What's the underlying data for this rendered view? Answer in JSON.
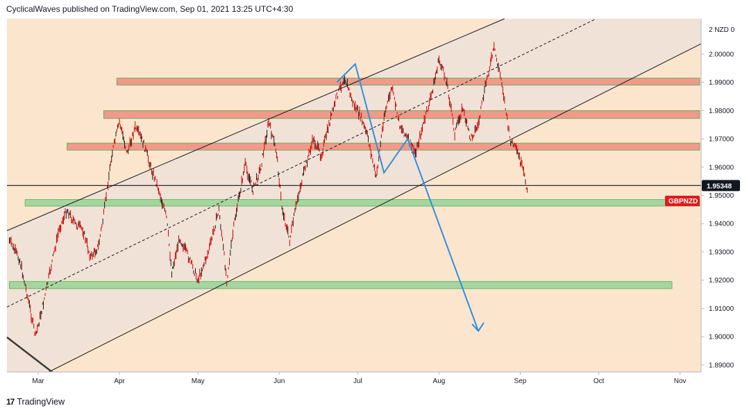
{
  "header": {
    "text": "CyclicalWaves published on TradingView.com, Sep 01, 2021 13:25 UTC+4:30"
  },
  "footer": {
    "logo": "17",
    "brand": "TradingView"
  },
  "colors": {
    "background": "#fbe5cd",
    "channel_fill": "#efe2d6",
    "resistance_zone": "#ef9a8a",
    "support_zone": "#a5d6a0",
    "zone_border": "#4caf50",
    "candle": "#cc0000",
    "projection": "#2f8fe0",
    "symbol_tag": "#e31919",
    "price_tag": "#131722"
  },
  "chart_data": {
    "type": "line",
    "symbol": "GBPNZD",
    "currency_label": "2 NZD 0",
    "last_price": "1.95348",
    "ylim": [
      1.8875,
      2.0125
    ],
    "y_ticks": [
      "2.00000",
      "1.99000",
      "1.98000",
      "1.97000",
      "1.96000",
      "1.95000",
      "1.94000",
      "1.93000",
      "1.92000",
      "1.91000",
      "1.90000",
      "1.89000"
    ],
    "x_ticks": [
      "Mar",
      "Apr",
      "May",
      "Jun",
      "Jul",
      "Aug",
      "Sep",
      "Oct",
      "Nov"
    ],
    "series": [
      {
        "values": [
          [
            "2021-02-18",
            1.934
          ],
          [
            "2021-02-22",
            1.927
          ],
          [
            "2021-02-25",
            1.914
          ],
          [
            "2021-02-28",
            1.9
          ],
          [
            "2021-03-03",
            1.912
          ],
          [
            "2021-03-06",
            1.925
          ],
          [
            "2021-03-09",
            1.938
          ],
          [
            "2021-03-12",
            1.945
          ],
          [
            "2021-03-15",
            1.94
          ],
          [
            "2021-03-18",
            1.938
          ],
          [
            "2021-03-21",
            1.928
          ],
          [
            "2021-03-24",
            1.932
          ],
          [
            "2021-03-26",
            1.943
          ],
          [
            "2021-03-29",
            1.964
          ],
          [
            "2021-04-01",
            1.976
          ],
          [
            "2021-04-04",
            1.965
          ],
          [
            "2021-04-07",
            1.974
          ],
          [
            "2021-04-10",
            1.969
          ],
          [
            "2021-04-13",
            1.96
          ],
          [
            "2021-04-16",
            1.952
          ],
          [
            "2021-04-19",
            1.942
          ],
          [
            "2021-04-21",
            1.923
          ],
          [
            "2021-04-24",
            1.935
          ],
          [
            "2021-04-27",
            1.929
          ],
          [
            "2021-05-01",
            1.92
          ],
          [
            "2021-05-05",
            1.93
          ],
          [
            "2021-05-09",
            1.945
          ],
          [
            "2021-05-12",
            1.92
          ],
          [
            "2021-05-15",
            1.941
          ],
          [
            "2021-05-19",
            1.961
          ],
          [
            "2021-05-22",
            1.952
          ],
          [
            "2021-05-25",
            1.96
          ],
          [
            "2021-05-28",
            1.976
          ],
          [
            "2021-05-31",
            1.965
          ],
          [
            "2021-06-02",
            1.946
          ],
          [
            "2021-06-05",
            1.934
          ],
          [
            "2021-06-08",
            1.949
          ],
          [
            "2021-06-11",
            1.96
          ],
          [
            "2021-06-14",
            1.97
          ],
          [
            "2021-06-17",
            1.964
          ],
          [
            "2021-06-20",
            1.975
          ],
          [
            "2021-06-23",
            1.985
          ],
          [
            "2021-06-26",
            1.992
          ],
          [
            "2021-06-29",
            1.983
          ],
          [
            "2021-07-02",
            1.978
          ],
          [
            "2021-07-05",
            1.97
          ],
          [
            "2021-07-08",
            1.956
          ],
          [
            "2021-07-11",
            1.978
          ],
          [
            "2021-07-14",
            1.988
          ],
          [
            "2021-07-17",
            1.975
          ],
          [
            "2021-07-20",
            1.97
          ],
          [
            "2021-07-23",
            1.965
          ],
          [
            "2021-07-26",
            1.975
          ],
          [
            "2021-07-29",
            1.985
          ],
          [
            "2021-08-01",
            1.998
          ],
          [
            "2021-08-04",
            1.99
          ],
          [
            "2021-08-07",
            1.972
          ],
          [
            "2021-08-10",
            1.981
          ],
          [
            "2021-08-13",
            1.97
          ],
          [
            "2021-08-16",
            1.975
          ],
          [
            "2021-08-19",
            1.99
          ],
          [
            "2021-08-22",
            2.002
          ],
          [
            "2021-08-25",
            1.99
          ],
          [
            "2021-08-28",
            1.97
          ],
          [
            "2021-08-31",
            1.965
          ],
          [
            "2021-09-02",
            1.959
          ],
          [
            "2021-09-04",
            1.951
          ]
        ]
      }
    ]
  }
}
